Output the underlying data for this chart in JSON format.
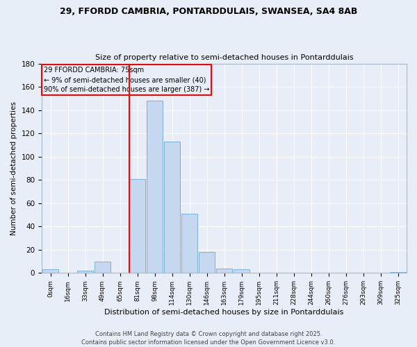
{
  "title1": "29, FFORDD CAMBRIA, PONTARDDULAIS, SWANSEA, SA4 8AB",
  "title2": "Size of property relative to semi-detached houses in Pontarddulais",
  "xlabel": "Distribution of semi-detached houses by size in Pontarddulais",
  "ylabel": "Number of semi-detached properties",
  "bins": [
    "0sqm",
    "16sqm",
    "33sqm",
    "49sqm",
    "65sqm",
    "81sqm",
    "98sqm",
    "114sqm",
    "130sqm",
    "146sqm",
    "163sqm",
    "179sqm",
    "195sqm",
    "211sqm",
    "228sqm",
    "244sqm",
    "260sqm",
    "276sqm",
    "293sqm",
    "309sqm",
    "325sqm"
  ],
  "values": [
    3,
    0,
    2,
    10,
    0,
    81,
    148,
    113,
    51,
    18,
    4,
    3,
    0,
    0,
    0,
    0,
    0,
    0,
    0,
    0,
    1
  ],
  "bar_color": "#c5d8f0",
  "bar_edge_color": "#7aafd4",
  "annotation_title": "29 FFORDD CAMBRIA: 75sqm",
  "annotation_line1": "← 9% of semi-detached houses are smaller (40)",
  "annotation_line2": "90% of semi-detached houses are larger (387) →",
  "vline_color": "red",
  "ylim": [
    0,
    180
  ],
  "yticks": [
    0,
    20,
    40,
    60,
    80,
    100,
    120,
    140,
    160,
    180
  ],
  "footer1": "Contains HM Land Registry data © Crown copyright and database right 2025.",
  "footer2": "Contains public sector information licensed under the Open Government Licence v3.0.",
  "bg_color": "#e8eef8",
  "grid_color": "#ffffff"
}
